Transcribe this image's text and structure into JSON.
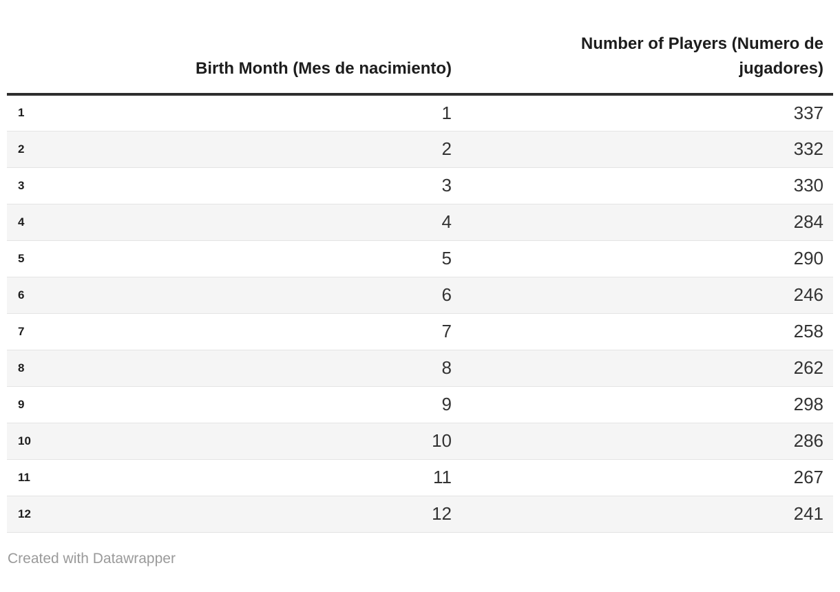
{
  "table": {
    "columns": [
      {
        "label": "",
        "align": "left"
      },
      {
        "label": "Birth Month (Mes de nacimiento)",
        "align": "right"
      },
      {
        "label": "Number of Players (Numero de jugadores)",
        "align": "right"
      }
    ],
    "rows": [
      {
        "index": "1",
        "month": "1",
        "players": "337"
      },
      {
        "index": "2",
        "month": "2",
        "players": "332"
      },
      {
        "index": "3",
        "month": "3",
        "players": "330"
      },
      {
        "index": "4",
        "month": "4",
        "players": "284"
      },
      {
        "index": "5",
        "month": "5",
        "players": "290"
      },
      {
        "index": "6",
        "month": "6",
        "players": "246"
      },
      {
        "index": "7",
        "month": "7",
        "players": "258"
      },
      {
        "index": "8",
        "month": "8",
        "players": "262"
      },
      {
        "index": "9",
        "month": "9",
        "players": "298"
      },
      {
        "index": "10",
        "month": "10",
        "players": "286"
      },
      {
        "index": "11",
        "month": "11",
        "players": "267"
      },
      {
        "index": "12",
        "month": "12",
        "players": "241"
      }
    ]
  },
  "footer": {
    "credit": "Created with Datawrapper"
  },
  "colors": {
    "stripe": "#f5f5f5",
    "row_separator": "#e4e4e4",
    "header_rule": "#2e2e2e",
    "text": "#333333",
    "header_text": "#1d1d1d",
    "credit_text": "#9a9a9a"
  },
  "chart_data": {
    "type": "table",
    "title": "",
    "columns": [
      "",
      "Birth Month (Mes de nacimiento)",
      "Number of Players (Numero de jugadores)"
    ],
    "rows": [
      [
        1,
        1,
        337
      ],
      [
        2,
        2,
        332
      ],
      [
        3,
        3,
        330
      ],
      [
        4,
        4,
        284
      ],
      [
        5,
        5,
        290
      ],
      [
        6,
        6,
        246
      ],
      [
        7,
        7,
        258
      ],
      [
        8,
        8,
        262
      ],
      [
        9,
        9,
        298
      ],
      [
        10,
        10,
        286
      ],
      [
        11,
        11,
        267
      ],
      [
        12,
        12,
        241
      ]
    ],
    "layout_hints": {
      "striped_rows": true,
      "header_alignment": "right",
      "value_alignment": "right",
      "row_index_column": true
    },
    "credit": "Created with Datawrapper"
  }
}
